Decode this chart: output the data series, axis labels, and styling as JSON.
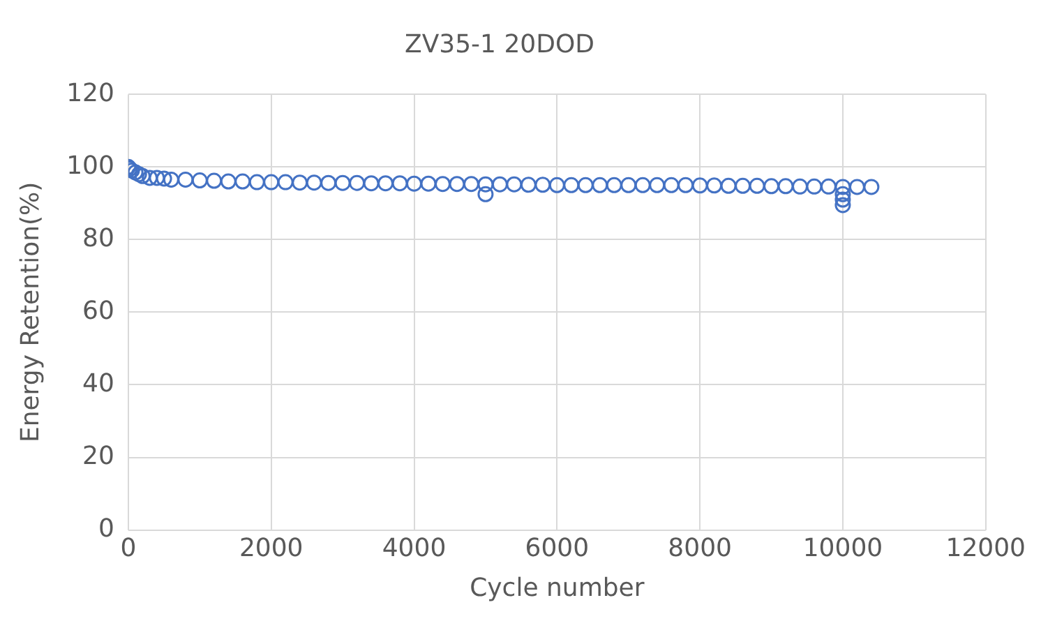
{
  "chart_data": {
    "type": "scatter",
    "title": "ZV35-1 20DOD",
    "xlabel": "Cycle number",
    "ylabel": "Energy Retention(%)",
    "x": [
      0,
      20,
      50,
      100,
      150,
      200,
      300,
      400,
      500,
      600,
      800,
      1000,
      1200,
      1400,
      1600,
      1800,
      2000,
      2200,
      2400,
      2600,
      2800,
      3000,
      3200,
      3400,
      3600,
      3800,
      4000,
      4200,
      4400,
      4600,
      4800,
      5000,
      5000,
      5200,
      5400,
      5600,
      5800,
      6000,
      6200,
      6400,
      6600,
      6800,
      7000,
      7200,
      7400,
      7600,
      7800,
      8000,
      8200,
      8400,
      8600,
      8800,
      9000,
      9200,
      9400,
      9600,
      9800,
      10000,
      10000,
      10000,
      10000,
      10200,
      10400
    ],
    "values": [
      100,
      99.5,
      99,
      98.5,
      98,
      97.5,
      97,
      97,
      96.8,
      96.5,
      96.5,
      96.3,
      96.2,
      96,
      96,
      95.8,
      95.8,
      95.8,
      95.7,
      95.7,
      95.6,
      95.6,
      95.6,
      95.5,
      95.5,
      95.5,
      95.4,
      95.4,
      95.3,
      95.3,
      95.3,
      95.2,
      92.5,
      95.2,
      95.2,
      95.1,
      95.1,
      95,
      95,
      95,
      95,
      95,
      95,
      95,
      95,
      95,
      95,
      94.9,
      94.9,
      94.8,
      94.8,
      94.8,
      94.7,
      94.7,
      94.6,
      94.6,
      94.6,
      94.5,
      92.5,
      91,
      89.5,
      94.5,
      94.5
    ],
    "color": "#4472c4",
    "marker": "circle",
    "xlim": [
      0,
      12000
    ],
    "xticks": [
      0,
      2000,
      4000,
      6000,
      8000,
      10000,
      12000
    ],
    "ylim": [
      0,
      120
    ],
    "yticks": [
      0,
      20,
      40,
      60,
      80,
      100,
      120
    ],
    "grid": true,
    "legend": false
  }
}
